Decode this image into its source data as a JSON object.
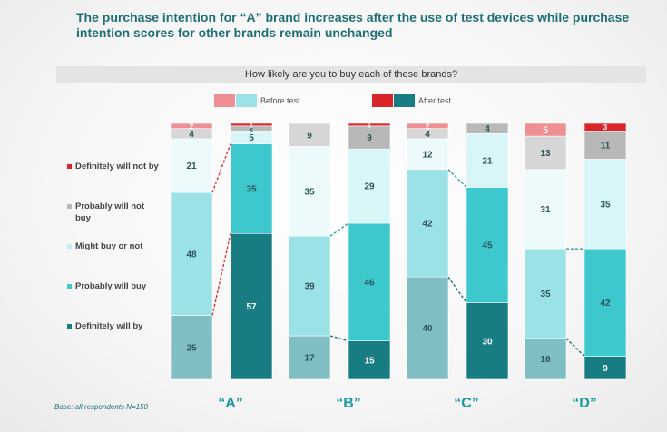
{
  "title": "The purchase intention for “A” brand increases after the use of test devices while purchase intention scores for other brands remain unchanged",
  "question": "How likely are you to buy each of these brands?",
  "legend": {
    "before": "Before test",
    "after": "After test"
  },
  "base_note": "Base: all respondents N=150",
  "colors": {
    "def_not": "#d9252a",
    "prob_not": "#b8b8b8",
    "might": "#d8f5f7",
    "prob_will": "#3cc8cc",
    "def_will": "#177d82",
    "before_def_not": "#ee8f93",
    "before_prob_not": "#d6d6d6",
    "before_might": "#ecfafb",
    "before_prob_will": "#9be2e6",
    "before_def_will": "#7fbfc4"
  },
  "chart_data": {
    "type": "bar",
    "stacked": true,
    "orientation": "vertical",
    "categories": [
      "Definitely will not by",
      "Probably will not buy",
      "Might buy or not",
      "Probably will buy",
      "Definitely will by"
    ],
    "brands": [
      {
        "label": "“A”",
        "before": {
          "def_not": 2,
          "prob_not": 4,
          "might": 21,
          "prob_will": 48,
          "def_will": 25
        },
        "after": {
          "def_not": 1,
          "prob_not": 2,
          "might": 5,
          "prob_will": 35,
          "def_will": 57
        }
      },
      {
        "label": "“B”",
        "before": {
          "def_not": 0,
          "prob_not": 9,
          "might": 35,
          "prob_will": 39,
          "def_will": 17
        },
        "after": {
          "def_not": 1,
          "prob_not": 9,
          "might": 29,
          "prob_will": 46,
          "def_will": 15
        }
      },
      {
        "label": "“C”",
        "before": {
          "def_not": 2,
          "prob_not": 4,
          "might": 12,
          "prob_will": 42,
          "def_will": 40
        },
        "after": {
          "def_not": 0,
          "prob_not": 4,
          "might": 21,
          "prob_will": 45,
          "def_will": 30
        }
      },
      {
        "label": "“D”",
        "before": {
          "def_not": 5,
          "prob_not": 13,
          "might": 31,
          "prob_will": 35,
          "def_will": 16
        },
        "after": {
          "def_not": 3,
          "prob_not": 11,
          "might": 35,
          "prob_will": 42,
          "def_will": 9
        }
      }
    ],
    "ylim": [
      0,
      100
    ],
    "connectors": [
      {
        "brand": 0,
        "boundary": "prob_will_top",
        "color": "#d9252a"
      },
      {
        "brand": 0,
        "boundary": "def_will_top",
        "color": "#d9252a"
      },
      {
        "brand": 1,
        "boundary": "prob_will_top",
        "color": "#2a9a9e"
      },
      {
        "brand": 1,
        "boundary": "def_will_top",
        "color": "#176b70"
      },
      {
        "brand": 2,
        "boundary": "prob_will_top",
        "color": "#2a9a9e"
      },
      {
        "brand": 2,
        "boundary": "def_will_top",
        "color": "#176b70"
      },
      {
        "brand": 3,
        "boundary": "prob_will_top",
        "color": "#2a9a9e"
      },
      {
        "brand": 3,
        "boundary": "def_will_top",
        "color": "#176b70"
      }
    ]
  },
  "legend_left": [
    {
      "key": "def_not",
      "label": "Definitely will not by"
    },
    {
      "key": "prob_not",
      "label": "Probably will not buy"
    },
    {
      "key": "might",
      "label": "Might buy or not"
    },
    {
      "key": "prob_will",
      "label": "Probably will buy"
    },
    {
      "key": "def_will",
      "label": "Definitely will by"
    }
  ]
}
